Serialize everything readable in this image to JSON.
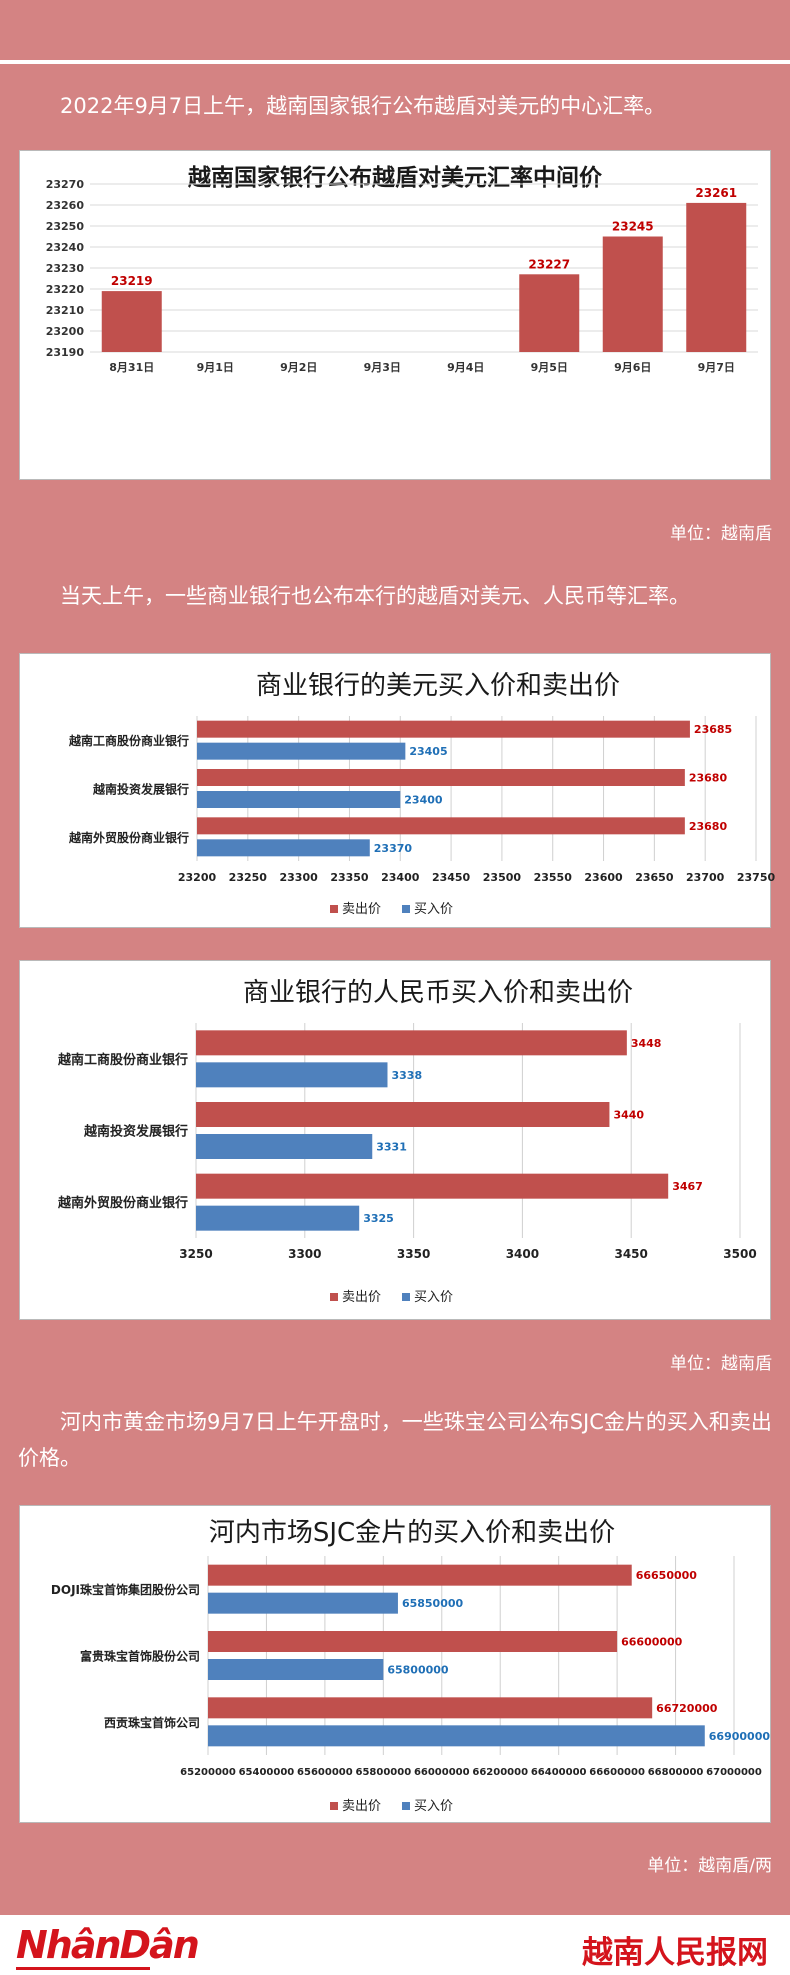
{
  "intro_text": "2022年9月7日上午，越南国家银行公布越盾对美元的中心汇率。",
  "mid_text": "当天上午，一些商业银行也公布本行的越盾对美元、人民币等汇率。",
  "gold_text": "河内市黄金市场9月7日上午开盘时，一些珠宝公司公布SJC金片的买入和卖出价格。",
  "unit_1": "单位：越南盾",
  "unit_2": "单位：越南盾",
  "unit_3": "单位：越南盾/两",
  "footer": {
    "logo_left": "NhânDân",
    "logo_right": "越南人民报网"
  },
  "colors": {
    "sell": "#c0504d",
    "buy": "#4f81bd",
    "sell_label": "#c00000",
    "buy_label": "#1f6fb6",
    "background": "#d48383"
  },
  "chart_data": [
    {
      "type": "bar",
      "title": "越南国家银行公布越盾对美元汇率中间价",
      "categories": [
        "8月31日",
        "9月1日",
        "9月2日",
        "9月3日",
        "9月4日",
        "9月5日",
        "9月6日",
        "9月7日"
      ],
      "values": [
        23219,
        null,
        null,
        null,
        null,
        23227,
        23245,
        23261
      ],
      "ylim": [
        23190,
        23270
      ],
      "yticks": [
        23190,
        23200,
        23210,
        23220,
        23230,
        23240,
        23250,
        23260,
        23270
      ],
      "grid": true
    },
    {
      "type": "bar",
      "orientation": "horizontal",
      "title": "商业银行的美元买入价和卖出价",
      "categories": [
        "越南工商股份商业银行",
        "越南投资发展银行",
        "越南外贸股份商业银行"
      ],
      "series": [
        {
          "name": "卖出价",
          "values": [
            23685,
            23680,
            23680
          ]
        },
        {
          "name": "买入价",
          "values": [
            23405,
            23400,
            23370
          ]
        }
      ],
      "xlim": [
        23200,
        23750
      ],
      "xticks": [
        23200,
        23250,
        23300,
        23350,
        23400,
        23450,
        23500,
        23550,
        23600,
        23650,
        23700,
        23750
      ],
      "legend": "bottom"
    },
    {
      "type": "bar",
      "orientation": "horizontal",
      "title": "商业银行的人民币买入价和卖出价",
      "categories": [
        "越南工商股份商业银行",
        "越南投资发展银行",
        "越南外贸股份商业银行"
      ],
      "series": [
        {
          "name": "卖出价",
          "values": [
            3448,
            3440,
            3467
          ]
        },
        {
          "name": "买入价",
          "values": [
            3338,
            3331,
            3325
          ]
        }
      ],
      "xlim": [
        3250,
        3500
      ],
      "xticks": [
        3250,
        3300,
        3350,
        3400,
        3450,
        3500
      ],
      "legend": "bottom"
    },
    {
      "type": "bar",
      "orientation": "horizontal",
      "title": "河内市场SJC金片的买入价和卖出价",
      "categories": [
        "DOJI珠宝首饰集团股份公司",
        "富贵珠宝首饰股份公司",
        "西贡珠宝首饰公司"
      ],
      "series": [
        {
          "name": "卖出价",
          "values": [
            66650000,
            66600000,
            66720000
          ]
        },
        {
          "name": "买入价",
          "values": [
            65850000,
            65800000,
            66900000
          ]
        }
      ],
      "xlim": [
        65200000,
        67000000
      ],
      "xticks": [
        65200000,
        65400000,
        65600000,
        65800000,
        66000000,
        66200000,
        66400000,
        66600000,
        66800000,
        67000000
      ],
      "legend": "bottom"
    }
  ]
}
